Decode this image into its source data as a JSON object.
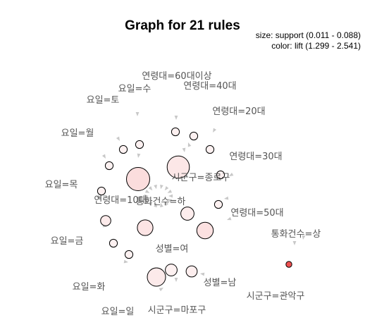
{
  "title": "Graph for 21 rules",
  "legend": {
    "size": "size: support (0.011 - 0.088)",
    "color": "color: lift (1.299 - 2.541)"
  },
  "items": [
    "연령대=60대이상",
    "요일=수",
    "연령대=40대",
    "요일=토",
    "연령대=20대",
    "요일=월",
    "연령대=30대",
    "시군구=종로구",
    "요일=목",
    "연령대=10대",
    "통화건수=하",
    "연령대=50대",
    "통화건수=상",
    "요일=금",
    "성별=여",
    "요일=화",
    "성별=남",
    "시군구=관악구",
    "요일=일",
    "시군구=마포구"
  ],
  "rules": [
    {
      "support": 0.088,
      "lift": 1.45
    },
    {
      "support": 0.08,
      "lift": 1.38
    },
    {
      "support": 0.05,
      "lift": 1.35
    },
    {
      "support": 0.04,
      "lift": 1.42
    },
    {
      "support": 0.035,
      "lift": 1.4
    },
    {
      "support": 0.025,
      "lift": 1.33
    },
    {
      "support": 0.02,
      "lift": 1.3
    },
    {
      "support": 0.018,
      "lift": 1.32
    },
    {
      "support": 0.016,
      "lift": 1.35
    },
    {
      "support": 0.012,
      "lift": 1.31
    },
    {
      "support": 0.012,
      "lift": 1.3
    },
    {
      "support": 0.012,
      "lift": 1.3
    },
    {
      "support": 0.012,
      "lift": 1.3
    },
    {
      "support": 0.012,
      "lift": 1.3
    },
    {
      "support": 0.012,
      "lift": 1.3
    },
    {
      "support": 0.012,
      "lift": 1.3
    },
    {
      "support": 0.012,
      "lift": 1.3
    },
    {
      "support": 0.012,
      "lift": 1.3
    },
    {
      "support": 0.012,
      "lift": 1.3
    },
    {
      "support": 0.012,
      "lift": 1.3
    },
    {
      "support": 0.011,
      "lift": 2.541
    }
  ],
  "colors": {
    "node_low": "#fdf1f1",
    "node_high": "#ee5050",
    "arrow": "#c8c8c8",
    "label": "#555555"
  }
}
